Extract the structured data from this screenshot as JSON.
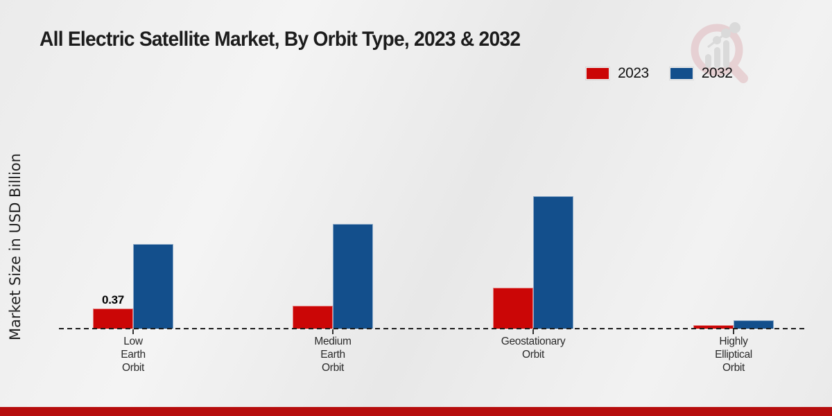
{
  "title": "All Electric Satellite Market, By Orbit Type, 2023 & 2032",
  "ylabel": "Market Size in USD Billion",
  "legend": {
    "position": "top-right",
    "items": [
      {
        "label": "2023",
        "color": "#cb0606"
      },
      {
        "label": "2032",
        "color": "#134f8c"
      }
    ]
  },
  "colors": {
    "series_2023": "#cb0606",
    "series_2032": "#134f8c",
    "footer_band": "#b60d0d",
    "axis_line": "#1a1a1a",
    "background": "#ededed"
  },
  "icons": {
    "watermark": "magnifier-bar-chart-logo"
  },
  "chart_data": {
    "type": "bar",
    "title": "All Electric Satellite Market, By Orbit Type, 2023 & 2032",
    "xlabel": "",
    "ylabel": "Market Size in USD Billion",
    "categories": [
      "Low Earth Orbit",
      "Medium Earth Orbit",
      "Geostationary Orbit",
      "Highly Elliptical Orbit"
    ],
    "category_label_lines": [
      [
        "Low",
        "Earth",
        "Orbit"
      ],
      [
        "Medium",
        "Earth",
        "Orbit"
      ],
      [
        "Geostationary",
        "Orbit"
      ],
      [
        "Highly",
        "Elliptical",
        "Orbit"
      ]
    ],
    "series": [
      {
        "name": "2023",
        "color": "#cb0606",
        "values": [
          0.37,
          0.42,
          0.75,
          0.07
        ]
      },
      {
        "name": "2032",
        "color": "#134f8c",
        "values": [
          1.56,
          1.92,
          2.44,
          0.15
        ]
      }
    ],
    "data_labels": [
      {
        "series_index": 0,
        "category_index": 0,
        "text": "0.37"
      }
    ],
    "unit": "USD Billion",
    "ylim": [
      0,
      3
    ],
    "grid": false,
    "legend_position": "top-right",
    "baseline_style": "dashed"
  }
}
